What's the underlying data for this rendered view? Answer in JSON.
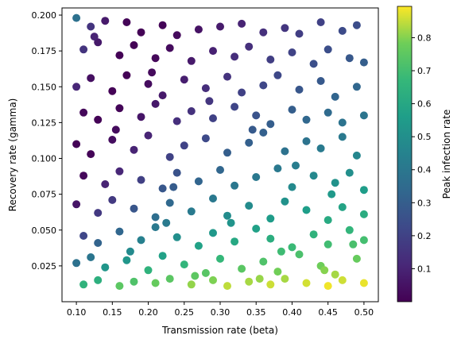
{
  "chart_data": {
    "type": "scatter",
    "title": "",
    "xlabel": "Transmission rate (beta)",
    "ylabel": "Recovery rate (gamma)",
    "colorbar_label": "Peak infection rate",
    "colormap": "viridis",
    "xlim": [
      0.08,
      0.52
    ],
    "ylim": [
      0.0,
      0.205
    ],
    "clim": [
      0.0,
      0.895
    ],
    "xticks": [
      0.1,
      0.15,
      0.2,
      0.25,
      0.3,
      0.35,
      0.4,
      0.45,
      0.5
    ],
    "yticks": [
      0.025,
      0.05,
      0.075,
      0.1,
      0.125,
      0.15,
      0.175,
      0.2
    ],
    "cticks": [
      0.1,
      0.2,
      0.3,
      0.4,
      0.5,
      0.6,
      0.7,
      0.8
    ],
    "grid": false,
    "points": [
      [
        0.1,
        0.198
      ],
      [
        0.12,
        0.192
      ],
      [
        0.14,
        0.196
      ],
      [
        0.17,
        0.195
      ],
      [
        0.19,
        0.188
      ],
      [
        0.22,
        0.193
      ],
      [
        0.24,
        0.186
      ],
      [
        0.27,
        0.19
      ],
      [
        0.3,
        0.192
      ],
      [
        0.33,
        0.194
      ],
      [
        0.36,
        0.188
      ],
      [
        0.39,
        0.191
      ],
      [
        0.41,
        0.187
      ],
      [
        0.44,
        0.195
      ],
      [
        0.47,
        0.189
      ],
      [
        0.49,
        0.193
      ],
      [
        0.11,
        0.176
      ],
      [
        0.13,
        0.181
      ],
      [
        0.16,
        0.172
      ],
      [
        0.18,
        0.179
      ],
      [
        0.21,
        0.17
      ],
      [
        0.23,
        0.177
      ],
      [
        0.26,
        0.168
      ],
      [
        0.29,
        0.175
      ],
      [
        0.32,
        0.171
      ],
      [
        0.34,
        0.178
      ],
      [
        0.37,
        0.169
      ],
      [
        0.4,
        0.174
      ],
      [
        0.43,
        0.166
      ],
      [
        0.45,
        0.176
      ],
      [
        0.48,
        0.17
      ],
      [
        0.5,
        0.167
      ],
      [
        0.1,
        0.15
      ],
      [
        0.12,
        0.156
      ],
      [
        0.15,
        0.147
      ],
      [
        0.17,
        0.158
      ],
      [
        0.2,
        0.152
      ],
      [
        0.22,
        0.144
      ],
      [
        0.25,
        0.155
      ],
      [
        0.28,
        0.149
      ],
      [
        0.31,
        0.157
      ],
      [
        0.33,
        0.146
      ],
      [
        0.36,
        0.151
      ],
      [
        0.38,
        0.158
      ],
      [
        0.41,
        0.148
      ],
      [
        0.44,
        0.154
      ],
      [
        0.46,
        0.143
      ],
      [
        0.49,
        0.15
      ],
      [
        0.11,
        0.132
      ],
      [
        0.13,
        0.127
      ],
      [
        0.16,
        0.135
      ],
      [
        0.19,
        0.129
      ],
      [
        0.21,
        0.138
      ],
      [
        0.24,
        0.126
      ],
      [
        0.26,
        0.133
      ],
      [
        0.29,
        0.128
      ],
      [
        0.32,
        0.136
      ],
      [
        0.35,
        0.13
      ],
      [
        0.37,
        0.124
      ],
      [
        0.4,
        0.134
      ],
      [
        0.42,
        0.127
      ],
      [
        0.45,
        0.132
      ],
      [
        0.47,
        0.125
      ],
      [
        0.5,
        0.13
      ],
      [
        0.1,
        0.11
      ],
      [
        0.12,
        0.103
      ],
      [
        0.15,
        0.113
      ],
      [
        0.18,
        0.106
      ],
      [
        0.2,
        0.116
      ],
      [
        0.23,
        0.101
      ],
      [
        0.25,
        0.109
      ],
      [
        0.28,
        0.114
      ],
      [
        0.31,
        0.104
      ],
      [
        0.34,
        0.111
      ],
      [
        0.36,
        0.118
      ],
      [
        0.39,
        0.105
      ],
      [
        0.42,
        0.112
      ],
      [
        0.44,
        0.107
      ],
      [
        0.47,
        0.115
      ],
      [
        0.49,
        0.102
      ],
      [
        0.11,
        0.088
      ],
      [
        0.14,
        0.082
      ],
      [
        0.16,
        0.091
      ],
      [
        0.19,
        0.085
      ],
      [
        0.22,
        0.079
      ],
      [
        0.24,
        0.09
      ],
      [
        0.27,
        0.084
      ],
      [
        0.3,
        0.092
      ],
      [
        0.32,
        0.081
      ],
      [
        0.35,
        0.087
      ],
      [
        0.38,
        0.093
      ],
      [
        0.4,
        0.08
      ],
      [
        0.43,
        0.088
      ],
      [
        0.46,
        0.083
      ],
      [
        0.48,
        0.09
      ],
      [
        0.5,
        0.078
      ],
      [
        0.1,
        0.068
      ],
      [
        0.13,
        0.062
      ],
      [
        0.15,
        0.071
      ],
      [
        0.18,
        0.065
      ],
      [
        0.21,
        0.059
      ],
      [
        0.23,
        0.069
      ],
      [
        0.26,
        0.063
      ],
      [
        0.29,
        0.072
      ],
      [
        0.31,
        0.06
      ],
      [
        0.34,
        0.067
      ],
      [
        0.37,
        0.058
      ],
      [
        0.39,
        0.07
      ],
      [
        0.42,
        0.064
      ],
      [
        0.45,
        0.057
      ],
      [
        0.47,
        0.066
      ],
      [
        0.5,
        0.061
      ],
      [
        0.11,
        0.046
      ],
      [
        0.13,
        0.041
      ],
      [
        0.16,
        0.049
      ],
      [
        0.19,
        0.043
      ],
      [
        0.21,
        0.052
      ],
      [
        0.24,
        0.045
      ],
      [
        0.27,
        0.039
      ],
      [
        0.29,
        0.048
      ],
      [
        0.32,
        0.042
      ],
      [
        0.35,
        0.051
      ],
      [
        0.37,
        0.044
      ],
      [
        0.4,
        0.038
      ],
      [
        0.43,
        0.047
      ],
      [
        0.45,
        0.04
      ],
      [
        0.48,
        0.05
      ],
      [
        0.5,
        0.043
      ],
      [
        0.1,
        0.027
      ],
      [
        0.12,
        0.031
      ],
      [
        0.14,
        0.024
      ],
      [
        0.17,
        0.029
      ],
      [
        0.2,
        0.022
      ],
      [
        0.22,
        0.032
      ],
      [
        0.25,
        0.026
      ],
      [
        0.28,
        0.02
      ],
      [
        0.3,
        0.03
      ],
      [
        0.33,
        0.023
      ],
      [
        0.36,
        0.028
      ],
      [
        0.38,
        0.021
      ],
      [
        0.41,
        0.033
      ],
      [
        0.44,
        0.025
      ],
      [
        0.46,
        0.019
      ],
      [
        0.49,
        0.03
      ],
      [
        0.11,
        0.012
      ],
      [
        0.13,
        0.015
      ],
      [
        0.16,
        0.011
      ],
      [
        0.18,
        0.014
      ],
      [
        0.21,
        0.013
      ],
      [
        0.23,
        0.016
      ],
      [
        0.26,
        0.012
      ],
      [
        0.29,
        0.015
      ],
      [
        0.31,
        0.011
      ],
      [
        0.34,
        0.014
      ],
      [
        0.37,
        0.012
      ],
      [
        0.39,
        0.016
      ],
      [
        0.42,
        0.013
      ],
      [
        0.45,
        0.011
      ],
      [
        0.47,
        0.015
      ],
      [
        0.5,
        0.013
      ],
      [
        0.125,
        0.185
      ],
      [
        0.205,
        0.16
      ],
      [
        0.285,
        0.14
      ],
      [
        0.345,
        0.12
      ],
      [
        0.405,
        0.095
      ],
      [
        0.455,
        0.075
      ],
      [
        0.155,
        0.12
      ],
      [
        0.235,
        0.08
      ],
      [
        0.315,
        0.055
      ],
      [
        0.385,
        0.035
      ],
      [
        0.445,
        0.022
      ],
      [
        0.175,
        0.035
      ],
      [
        0.265,
        0.018
      ],
      [
        0.355,
        0.016
      ],
      [
        0.485,
        0.04
      ],
      [
        0.225,
        0.055
      ]
    ]
  }
}
